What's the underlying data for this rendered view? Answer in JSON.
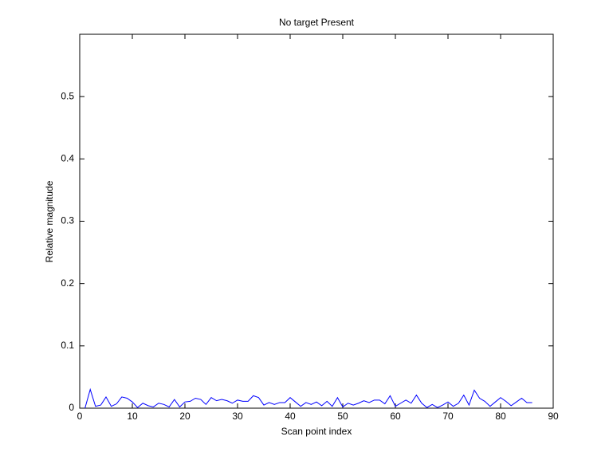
{
  "chart_data": {
    "type": "line",
    "title": "No target Present",
    "xlabel": "Scan point index",
    "ylabel": "Relative magnitude",
    "x": [
      1,
      2,
      3,
      4,
      5,
      6,
      7,
      8,
      9,
      10,
      11,
      12,
      13,
      14,
      15,
      16,
      17,
      18,
      19,
      20,
      21,
      22,
      23,
      24,
      25,
      26,
      27,
      28,
      29,
      30,
      31,
      32,
      33,
      34,
      35,
      36,
      37,
      38,
      39,
      40,
      41,
      42,
      43,
      44,
      45,
      46,
      47,
      48,
      49,
      50,
      51,
      52,
      53,
      54,
      55,
      56,
      57,
      58,
      59,
      60,
      61,
      62,
      63,
      64,
      65,
      66,
      67,
      68,
      69,
      70,
      71,
      72,
      73,
      74,
      75,
      76,
      77,
      78,
      79,
      80,
      81,
      82,
      83,
      84,
      85,
      86
    ],
    "values": [
      0,
      0.03,
      0.003,
      0.005,
      0.018,
      0.003,
      0.007,
      0.018,
      0.016,
      0.01,
      0.001,
      0.008,
      0.004,
      0.002,
      0.008,
      0.006,
      0.002,
      0.014,
      0.002,
      0.01,
      0.011,
      0.016,
      0.014,
      0.006,
      0.017,
      0.012,
      0.014,
      0.012,
      0.008,
      0.013,
      0.011,
      0.011,
      0.02,
      0.017,
      0.005,
      0.009,
      0.006,
      0.009,
      0.009,
      0.017,
      0.01,
      0.003,
      0.009,
      0.006,
      0.01,
      0.004,
      0.011,
      0.003,
      0.017,
      0.002,
      0.008,
      0.005,
      0.008,
      0.012,
      0.009,
      0.013,
      0.013,
      0.007,
      0.02,
      0.003,
      0.008,
      0.013,
      0.008,
      0.021,
      0.008,
      0.001,
      0.006,
      0.001,
      0.005,
      0.01,
      0.003,
      0.008,
      0.021,
      0.005,
      0.029,
      0.016,
      0.011,
      0.003,
      0.01,
      0.017,
      0.011,
      0.004,
      0.01,
      0.016,
      0.009,
      0.009
    ],
    "color": "#0000ff",
    "xlim": [
      0,
      90
    ],
    "xticks": [
      0,
      10,
      20,
      30,
      40,
      50,
      60,
      70,
      80,
      90
    ],
    "ylim": [
      0,
      0.6
    ],
    "yticks": [
      0,
      0.1,
      0.2,
      0.3,
      0.4,
      0.5
    ]
  }
}
